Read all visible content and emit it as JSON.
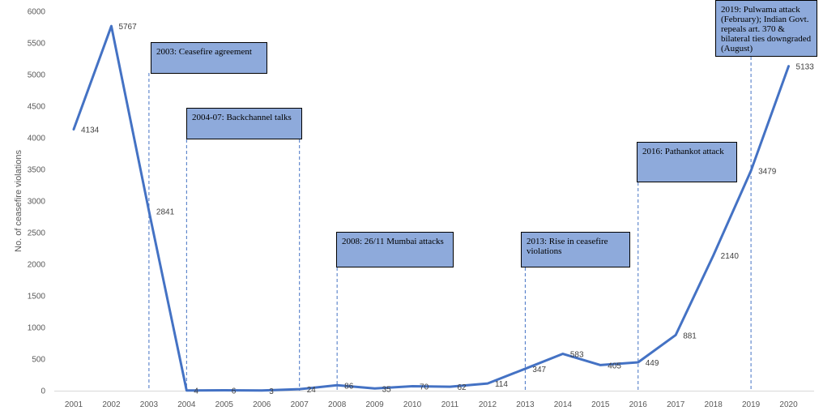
{
  "chart_data": {
    "type": "line",
    "ylabel": "No. of ceasefire violations",
    "xlabel": "",
    "ylim": [
      0,
      6000
    ],
    "yticks": [
      0,
      500,
      1000,
      1500,
      2000,
      2500,
      3000,
      3500,
      4000,
      4500,
      5000,
      5500,
      6000
    ],
    "grid": false,
    "categories": [
      "2001",
      "2002",
      "2003",
      "2004",
      "2005",
      "2006",
      "2007",
      "2008",
      "2009",
      "2010",
      "2011",
      "2012",
      "2013",
      "2014",
      "2015",
      "2016",
      "2017",
      "2018",
      "2019",
      "2020"
    ],
    "series": [
      {
        "values": [
          4134,
          5767,
          2841,
          4,
          6,
          3,
          24,
          86,
          35,
          70,
          62,
          114,
          347,
          583,
          405,
          449,
          881,
          2140,
          3479,
          5133
        ],
        "color": "#4472c4"
      }
    ],
    "annotations": [
      {
        "year": "2003",
        "text": "2003: Ceasefire agreement"
      },
      {
        "year": "2004",
        "text": "2004-07: Backchannel talks"
      },
      {
        "year": "2007",
        "text": ""
      },
      {
        "year": "2008",
        "text": "2008: 26/11 Mumbai attacks"
      },
      {
        "year": "2013",
        "text": "2013: Rise in ceasefire violations"
      },
      {
        "year": "2016",
        "text": "2016: Pathankot attack"
      },
      {
        "year": "2019",
        "text": "2019: Pulwama attack (February); Indian Govt. repeals art. 370 & bilateral ties downgraded (August)"
      }
    ],
    "colors": {
      "line": "#4472c4",
      "annotation_fill": "#8eaadb",
      "annotation_border": "#000000",
      "guide_line": "#4472c4"
    }
  }
}
